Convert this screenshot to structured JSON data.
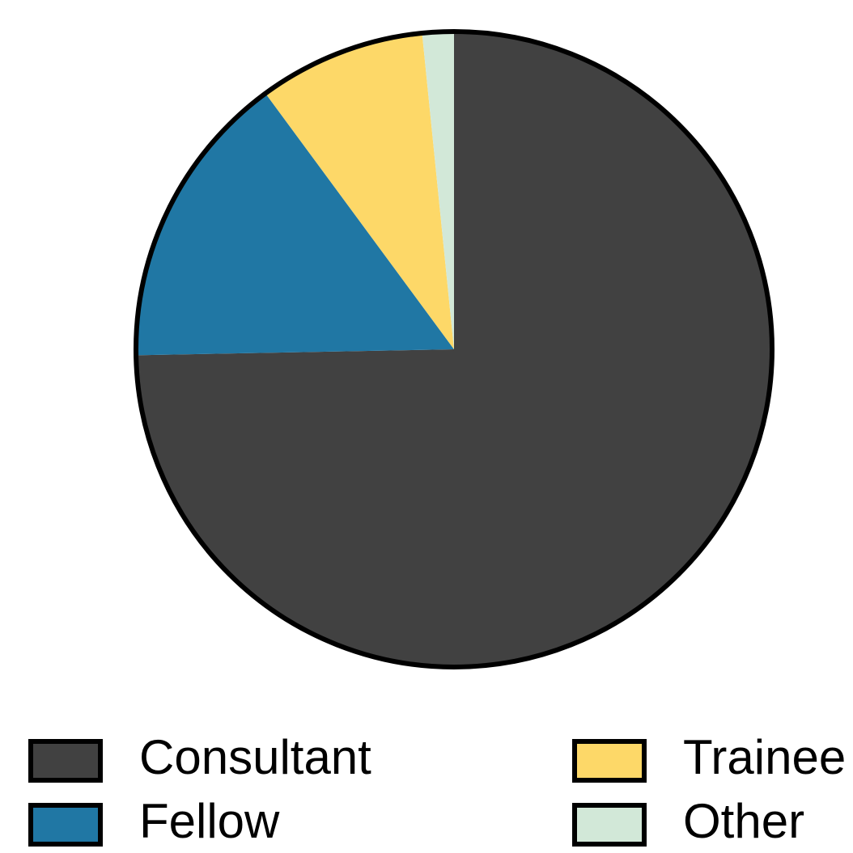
{
  "chart_data": {
    "type": "pie",
    "categories": [
      "Consultant",
      "Fellow",
      "Trainee",
      "Other"
    ],
    "values": [
      74.7,
      15.2,
      8.5,
      1.6
    ],
    "colors": [
      "#414141",
      "#2077a4",
      "#fdd868",
      "#d2e8d8"
    ]
  }
}
